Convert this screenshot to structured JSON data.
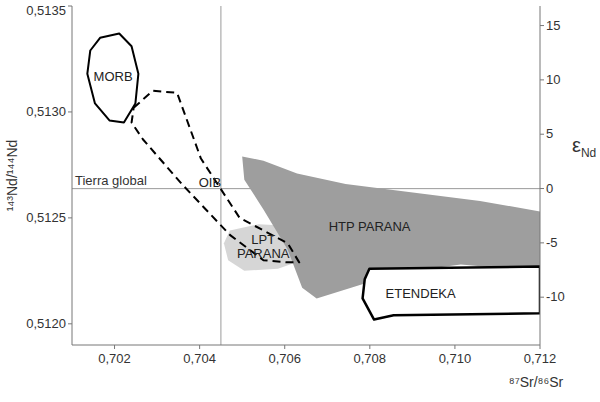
{
  "chart_data": {
    "type": "region",
    "x_label": "⁸⁷Sr/⁸⁶Sr",
    "y_label": "¹⁴³Nd/¹⁴⁴Nd",
    "y2_label": "εNd",
    "xlim": [
      0.701,
      0.712
    ],
    "xticks": [
      {
        "value": 0.702,
        "label": "0,702"
      },
      {
        "value": 0.704,
        "label": "0,704"
      },
      {
        "value": 0.706,
        "label": "0,706"
      },
      {
        "value": 0.708,
        "label": "0,708"
      },
      {
        "value": 0.71,
        "label": "0,710"
      },
      {
        "value": 0.712,
        "label": "0,712"
      }
    ],
    "ylim": [
      0.5119,
      0.5135
    ],
    "yticks": [
      {
        "value": 0.512,
        "label": "0,5120"
      },
      {
        "value": 0.5125,
        "label": "0,5125"
      },
      {
        "value": 0.513,
        "label": "0,5130"
      },
      {
        "value": 0.5135,
        "label": "0,5135"
      }
    ],
    "y2lim": [
      -14.4,
      16.8
    ],
    "y2ticks": [
      -10,
      -5,
      0,
      5,
      10,
      15
    ],
    "grid": false,
    "reference_lines": [
      {
        "axis": "y",
        "value": 0.512638,
        "label": "Tierra global"
      },
      {
        "axis": "x",
        "value": 0.7045
      }
    ],
    "series": [
      {
        "name": "LPT PARANA",
        "type": "polygon",
        "color": "#d6d6d6",
        "line_style": "none",
        "x": [
          0.70471,
          0.70539,
          0.70629,
          0.70652,
          0.70641,
          0.70584,
          0.70505,
          0.70467,
          0.70457
        ],
        "values": [
          0.51244,
          0.51247,
          0.51246,
          0.5124,
          0.5123,
          0.51226,
          0.51225,
          0.5123,
          0.51238
        ]
      },
      {
        "name": "HTP PARANA",
        "type": "polygon",
        "color": "#9e9e9e",
        "line_style": "none",
        "x": [
          0.705,
          0.7055,
          0.70629,
          0.70743,
          0.70901,
          0.71059,
          0.712,
          0.712,
          0.71127,
          0.71014,
          0.70901,
          0.70788,
          0.70675,
          0.70641,
          0.70607,
          0.7055,
          0.70505
        ],
        "values": [
          0.51279,
          0.51277,
          0.51271,
          0.51266,
          0.51262,
          0.51258,
          0.51253,
          0.51227,
          0.51226,
          0.51228,
          0.51225,
          0.51219,
          0.51212,
          0.51217,
          0.51235,
          0.51254,
          0.51268
        ]
      },
      {
        "name": "ETENDEKA",
        "type": "polygon",
        "color": "#ffffff",
        "line_style": "solid",
        "x": [
          0.70799,
          0.712,
          0.712,
          0.70856,
          0.7081,
          0.70783,
          0.70788
        ],
        "values": [
          0.51226,
          0.51227,
          0.51205,
          0.51204,
          0.51202,
          0.51212,
          0.51221
        ]
      },
      {
        "name": "MORB",
        "type": "polygon",
        "color": "none",
        "line_style": "solid",
        "x": [
          0.70166,
          0.70211,
          0.7024,
          0.70256,
          0.70249,
          0.70222,
          0.70188,
          0.70154,
          0.70136,
          0.70143
        ],
        "values": [
          0.51335,
          0.51337,
          0.51331,
          0.51318,
          0.51304,
          0.51295,
          0.51296,
          0.51304,
          0.51318,
          0.51329
        ]
      },
      {
        "name": "OIB",
        "type": "polygon",
        "color": "none",
        "line_style": "dashed",
        "x": [
          0.70245,
          0.7029,
          0.70347,
          0.70403,
          0.70494,
          0.70607,
          0.70634,
          0.70607,
          0.7055,
          0.70471,
          0.70358,
          0.70267,
          0.7024
        ],
        "values": [
          0.51302,
          0.5131,
          0.51309,
          0.51278,
          0.5125,
          0.51238,
          0.51229,
          0.51229,
          0.5123,
          0.51242,
          0.51266,
          0.51287,
          0.51295
        ]
      }
    ]
  }
}
